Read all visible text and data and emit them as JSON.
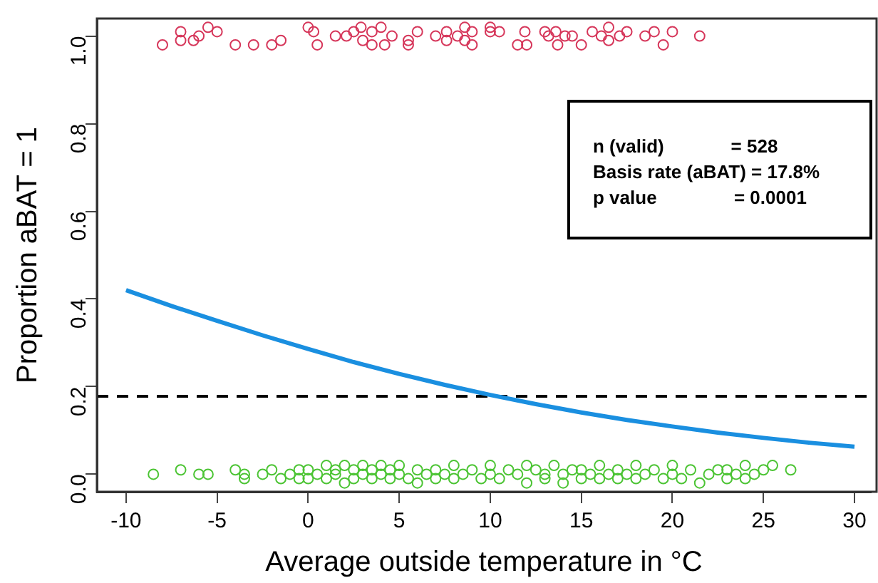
{
  "chart_data": {
    "type": "scatter",
    "xlabel": "Average outside temperature in °C",
    "ylabel": "Proportion aBAT = 1",
    "xlim": [
      -11.6,
      30.9
    ],
    "ylim": [
      -0.04,
      1.04
    ],
    "xticks": [
      -10,
      -5,
      0,
      5,
      10,
      15,
      20,
      25,
      30
    ],
    "yticks": [
      {
        "value": 0,
        "label": "0.0"
      },
      {
        "value": 0.2,
        "label": "0.2"
      },
      {
        "value": 0.4,
        "label": "0.4"
      },
      {
        "value": 0.6,
        "label": "0.6"
      },
      {
        "value": 0.8,
        "label": "0.8"
      },
      {
        "value": 1,
        "label": "1.0"
      }
    ],
    "grid": false,
    "legend": false,
    "annotations": [
      "n (valid)             = 528",
      "Basis rate (aBAT) = 17.8%",
      "p value               = 0.0001"
    ],
    "ref_lines": [
      {
        "axis": "y",
        "value": 0.178,
        "color": "#000000",
        "line_style": "dashed"
      }
    ],
    "series": [
      {
        "type": "scatter",
        "marker": "circle",
        "color": "#d6365a",
        "x": [
          -8.0,
          -7.0,
          -7.0,
          -6.3,
          -6.0,
          -5.5,
          -5.0,
          -4.0,
          -3.0,
          -2.0,
          -1.5,
          0.0,
          0.3,
          0.5,
          1.5,
          2.1,
          2.5,
          2.9,
          3.0,
          3.5,
          3.5,
          4.0,
          4.2,
          4.6,
          5.5,
          5.5,
          6.0,
          7.0,
          7.6,
          7.6,
          8.2,
          8.6,
          8.6,
          9.0,
          9.0,
          10.0,
          10.0,
          10.5,
          11.5,
          11.9,
          12.0,
          13.0,
          13.2,
          13.6,
          13.7,
          14.1,
          14.5,
          15.0,
          15.6,
          16.1,
          16.5,
          16.5,
          17.1,
          17.5,
          18.5,
          19.0,
          19.5,
          20.0,
          21.5
        ],
        "values": [
          0.98,
          1.01,
          0.99,
          0.99,
          1.0,
          1.02,
          1.01,
          0.98,
          0.98,
          0.98,
          0.99,
          1.02,
          1.01,
          0.98,
          1.0,
          1.0,
          1.01,
          1.02,
          0.99,
          1.01,
          0.98,
          1.02,
          0.98,
          1.0,
          0.99,
          0.98,
          1.01,
          1.0,
          1.01,
          0.99,
          1.0,
          1.02,
          0.99,
          1.01,
          0.98,
          1.02,
          1.01,
          1.01,
          0.98,
          1.01,
          0.98,
          1.01,
          1.0,
          1.01,
          0.98,
          1.0,
          1.0,
          0.98,
          1.01,
          1.0,
          1.02,
          0.99,
          1.0,
          1.01,
          1.0,
          1.01,
          0.98,
          1.01,
          1.0
        ]
      },
      {
        "type": "scatter",
        "marker": "circle",
        "color": "#4cc434",
        "x": [
          -8.5,
          -7.0,
          -6.0,
          -5.5,
          -4.0,
          -3.5,
          -3.5,
          -2.5,
          -2.0,
          -1.5,
          -1.0,
          -0.5,
          -0.5,
          0,
          0,
          0.5,
          1,
          1,
          1.5,
          1.5,
          2,
          2,
          2.5,
          2.5,
          3,
          3,
          3.5,
          3.5,
          4,
          4,
          4.5,
          4.5,
          5,
          5,
          5.5,
          6,
          6,
          6.5,
          7,
          7,
          7.5,
          8,
          8,
          8.5,
          9,
          9.5,
          10,
          10,
          10.5,
          11,
          11.5,
          12,
          12,
          12.5,
          13,
          13,
          13.5,
          14,
          14,
          14.5,
          15,
          15,
          15.5,
          16,
          16,
          16.5,
          17,
          17,
          17.5,
          18,
          18,
          18.5,
          19,
          19.5,
          20,
          20,
          20.5,
          21,
          21.5,
          22,
          22.5,
          23,
          23,
          23.5,
          24,
          24,
          24.5,
          25,
          25.5,
          26.5
        ],
        "values": [
          0.0,
          0.01,
          0.0,
          0.0,
          0.01,
          0.0,
          -0.01,
          0.0,
          0.01,
          -0.01,
          0.0,
          0.01,
          -0.01,
          0.01,
          -0.01,
          0.0,
          0.02,
          -0.01,
          0.0,
          0.01,
          0.02,
          -0.02,
          0.01,
          -0.01,
          0.0,
          0.02,
          -0.01,
          0.01,
          0.0,
          0.02,
          -0.01,
          0.01,
          0.0,
          0.02,
          -0.01,
          0.01,
          -0.02,
          0.0,
          0.01,
          -0.01,
          0.0,
          0.02,
          -0.01,
          0.0,
          0.01,
          -0.01,
          0.0,
          0.02,
          -0.01,
          0.01,
          0.0,
          0.02,
          -0.02,
          0.01,
          0.0,
          -0.01,
          0.02,
          0.0,
          -0.02,
          0.01,
          -0.01,
          0.01,
          0.0,
          0.02,
          -0.01,
          0.0,
          0.01,
          -0.01,
          0.0,
          0.02,
          -0.01,
          0.0,
          0.01,
          -0.01,
          0.0,
          0.02,
          -0.01,
          0.01,
          -0.02,
          0.0,
          0.01,
          -0.01,
          0.01,
          0.0,
          0.02,
          -0.01,
          0.0,
          0.01,
          0.02,
          0.01
        ]
      },
      {
        "type": "line",
        "marker": "none",
        "line_style": "solid",
        "color": "#1a8fe0",
        "x": [
          -10,
          -7.5,
          -5,
          -2.5,
          0,
          2.5,
          5,
          7.5,
          10,
          12.5,
          15,
          17.5,
          20,
          22.5,
          25,
          27.5,
          30
        ],
        "values": [
          0.42,
          0.384,
          0.35,
          0.317,
          0.286,
          0.256,
          0.229,
          0.204,
          0.181,
          0.16,
          0.141,
          0.124,
          0.109,
          0.095,
          0.083,
          0.072,
          0.063
        ]
      }
    ]
  }
}
